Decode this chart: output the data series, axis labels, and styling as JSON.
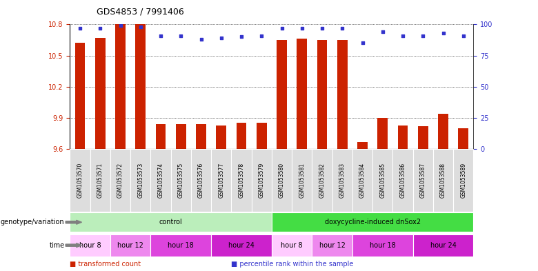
{
  "title": "GDS4853 / 7991406",
  "samples": [
    "GSM1053570",
    "GSM1053571",
    "GSM1053572",
    "GSM1053573",
    "GSM1053574",
    "GSM1053575",
    "GSM1053576",
    "GSM1053577",
    "GSM1053578",
    "GSM1053579",
    "GSM1053580",
    "GSM1053581",
    "GSM1053582",
    "GSM1053583",
    "GSM1053584",
    "GSM1053585",
    "GSM1053586",
    "GSM1053587",
    "GSM1053588",
    "GSM1053589"
  ],
  "bar_values": [
    10.62,
    10.67,
    10.8,
    10.8,
    9.84,
    9.84,
    9.84,
    9.83,
    9.85,
    9.85,
    10.65,
    10.66,
    10.65,
    10.65,
    9.67,
    9.9,
    9.83,
    9.82,
    9.94,
    9.8
  ],
  "percentile_values": [
    97,
    97,
    99,
    98,
    91,
    91,
    88,
    89,
    90,
    91,
    97,
    97,
    97,
    97,
    85,
    94,
    91,
    91,
    93,
    91
  ],
  "ylim_left": [
    9.6,
    10.8
  ],
  "ylim_right": [
    0,
    100
  ],
  "yticks_left": [
    9.6,
    9.9,
    10.2,
    10.5,
    10.8
  ],
  "yticks_right": [
    0,
    25,
    50,
    75,
    100
  ],
  "bar_color": "#cc2200",
  "dot_color": "#3333cc",
  "sample_bg_color": "#dddddd",
  "genotype_groups": [
    {
      "name": "control",
      "start": 0,
      "end": 9,
      "color": "#bbeebb"
    },
    {
      "name": "doxycycline-induced dnSox2",
      "start": 10,
      "end": 19,
      "color": "#44dd44"
    }
  ],
  "time_groups": [
    {
      "name": "hour 8",
      "start": 0,
      "end": 1,
      "color": "#ffccff"
    },
    {
      "name": "hour 12",
      "start": 2,
      "end": 3,
      "color": "#ee88ee"
    },
    {
      "name": "hour 18",
      "start": 4,
      "end": 6,
      "color": "#dd44dd"
    },
    {
      "name": "hour 24",
      "start": 7,
      "end": 9,
      "color": "#cc22cc"
    },
    {
      "name": "hour 8",
      "start": 10,
      "end": 11,
      "color": "#ffccff"
    },
    {
      "name": "hour 12",
      "start": 12,
      "end": 13,
      "color": "#ee88ee"
    },
    {
      "name": "hour 18",
      "start": 14,
      "end": 16,
      "color": "#dd44dd"
    },
    {
      "name": "hour 24",
      "start": 17,
      "end": 19,
      "color": "#cc22cc"
    }
  ],
  "genotype_label": "genotype/variation",
  "time_label": "time",
  "legend": [
    {
      "label": "transformed count",
      "color": "#cc2200"
    },
    {
      "label": "percentile rank within the sample",
      "color": "#3333cc"
    }
  ]
}
